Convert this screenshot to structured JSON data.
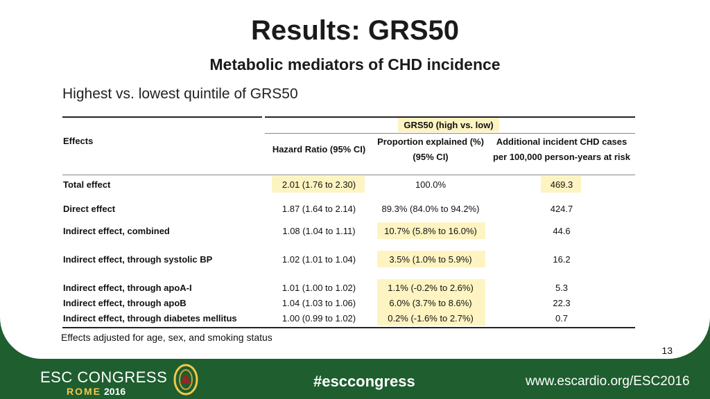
{
  "slide": {
    "title": "Results: GRS50",
    "subtitle": "Metabolic mediators of CHD incidence",
    "quintile_line": "Highest vs. lowest quintile of GRS50",
    "footnote": "Effects adjusted for age, sex, and smoking status",
    "page_number": "13"
  },
  "table": {
    "group_header": "GRS50 (high vs. low)",
    "col_effects": "Effects",
    "col_hr": "Hazard Ratio (95% CI)",
    "col_prop_1": "Proportion explained (%)",
    "col_prop_2": "(95% CI)",
    "col_add_1": "Additional incident CHD cases",
    "col_add_2": "per 100,000 person-years at risk",
    "rows": [
      {
        "effect": "Total effect",
        "hr": "2.01 (1.76 to 2.30)",
        "prop": "100.0%",
        "add": "469.3"
      },
      {
        "effect": "Direct effect",
        "hr": "1.87 (1.64 to 2.14)",
        "prop": "89.3% (84.0% to 94.2%)",
        "add": "424.7"
      },
      {
        "effect": "Indirect effect, combined",
        "hr": "1.08 (1.04 to 1.11)",
        "prop": "10.7% (5.8% to 16.0%)",
        "add": "44.6"
      },
      {
        "effect": "Indirect effect, through systolic BP",
        "hr": "1.02 (1.01 to 1.04)",
        "prop": "3.5% (1.0% to 5.9%)",
        "add": "16.2"
      },
      {
        "effect": "Indirect effect, through apoA-I",
        "hr": "1.01 (1.00 to 1.02)",
        "prop": "1.1% (-0.2% to 2.6%)",
        "add": "5.3"
      },
      {
        "effect": "Indirect effect, through apoB",
        "hr": "1.04 (1.03 to 1.06)",
        "prop": "6.0% (3.7% to 8.6%)",
        "add": "22.3"
      },
      {
        "effect": "Indirect effect, through diabetes mellitus",
        "hr": "1.00 (0.99 to 1.02)",
        "prop": "0.2% (-1.6% to 2.7%)",
        "add": "0.7"
      }
    ]
  },
  "footer": {
    "congress": "ESC CONGRESS",
    "city": "ROME",
    "year": "2016",
    "hashtag": "#esccongress",
    "url": "www.escardio.org/ESC2016"
  },
  "colors": {
    "highlight": "#fdf4c2",
    "footer_green": "#1f5e2f",
    "city_gold": "#f2c94c"
  }
}
